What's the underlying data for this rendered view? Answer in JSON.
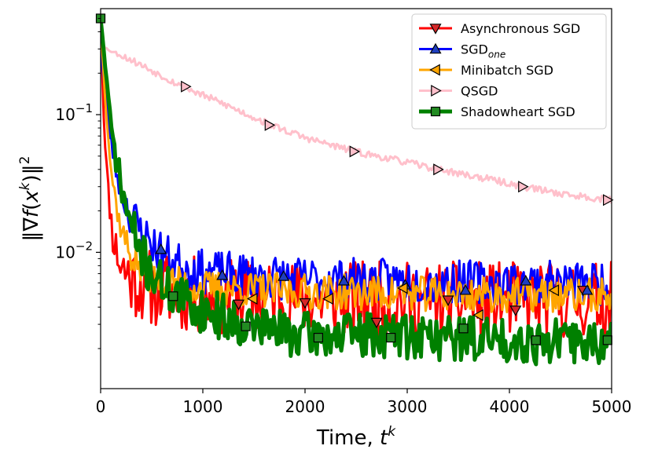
{
  "chart_data": {
    "type": "line",
    "title": "",
    "xlabel": "Time, t^k",
    "ylabel": "||∇f(x^k)||^2",
    "xlim": [
      0,
      5000
    ],
    "ylim_log10": [
      -2.99,
      -0.23
    ],
    "yscale": "log",
    "grid": false,
    "legend_position": "top-right",
    "x_ticks": [
      {
        "value": 0,
        "label": "0"
      },
      {
        "value": 1000,
        "label": "1000"
      },
      {
        "value": 2000,
        "label": "2000"
      },
      {
        "value": 3000,
        "label": "3000"
      },
      {
        "value": 4000,
        "label": "4000"
      },
      {
        "value": 5000,
        "label": "5000"
      }
    ],
    "y_ticks": [
      {
        "value": 0.1,
        "base": "10",
        "exponent": "−1"
      },
      {
        "value": 0.01,
        "base": "10",
        "exponent": "−2"
      }
    ],
    "series": [
      {
        "name": "Asynchronous SGD",
        "color": "#ff0000",
        "marker": "triangle-down",
        "marker_color": "#d62728",
        "stroke_width": 3,
        "noise": 0.28,
        "seed": 11,
        "curve": [
          [
            0,
            0.5
          ],
          [
            30,
            0.1
          ],
          [
            70,
            0.03
          ],
          [
            120,
            0.013
          ],
          [
            200,
            0.008
          ],
          [
            300,
            0.0065
          ],
          [
            500,
            0.0055
          ],
          [
            1000,
            0.0048
          ],
          [
            2000,
            0.0046
          ],
          [
            3000,
            0.0045
          ],
          [
            4000,
            0.0045
          ],
          [
            5000,
            0.0045
          ]
        ],
        "markers": [
          [
            1350,
            0.0042
          ],
          [
            2000,
            0.0043
          ],
          [
            2700,
            0.0031
          ],
          [
            3400,
            0.0045
          ],
          [
            4060,
            0.0038
          ],
          [
            4720,
            0.0053
          ]
        ]
      },
      {
        "name": "SGD_one",
        "color": "#0000ff",
        "marker": "triangle-up",
        "marker_color": "#1f3fbf",
        "stroke_width": 3,
        "noise": 0.16,
        "seed": 23,
        "curve": [
          [
            0,
            0.3
          ],
          [
            30,
            0.18
          ],
          [
            80,
            0.08
          ],
          [
            150,
            0.04
          ],
          [
            250,
            0.022
          ],
          [
            400,
            0.014
          ],
          [
            600,
            0.0098
          ],
          [
            800,
            0.008
          ],
          [
            1000,
            0.0072
          ],
          [
            1500,
            0.0068
          ],
          [
            2000,
            0.0064
          ],
          [
            3000,
            0.0062
          ],
          [
            4000,
            0.006
          ],
          [
            5000,
            0.006
          ]
        ],
        "markers": [
          [
            590,
            0.0105
          ],
          [
            1190,
            0.0068
          ],
          [
            1790,
            0.0067
          ],
          [
            2380,
            0.0062
          ],
          [
            2980,
            0.0058
          ],
          [
            3570,
            0.0053
          ],
          [
            4160,
            0.0062
          ],
          [
            4760,
            0.0053
          ]
        ]
      },
      {
        "name": "Minibatch SGD",
        "color": "#ffa500",
        "marker": "triangle-left",
        "marker_color": "#ffa500",
        "stroke_width": 3,
        "noise": 0.13,
        "seed": 37,
        "curve": [
          [
            0,
            0.45
          ],
          [
            40,
            0.15
          ],
          [
            100,
            0.04
          ],
          [
            180,
            0.017
          ],
          [
            280,
            0.01
          ],
          [
            400,
            0.0075
          ],
          [
            600,
            0.0062
          ],
          [
            1000,
            0.0055
          ],
          [
            2000,
            0.0052
          ],
          [
            3000,
            0.005
          ],
          [
            4000,
            0.0049
          ],
          [
            5000,
            0.0048
          ]
        ],
        "markers": [
          [
            1490,
            0.0046
          ],
          [
            2230,
            0.0046
          ],
          [
            2960,
            0.0055
          ],
          [
            3700,
            0.0035
          ],
          [
            4440,
            0.0053
          ]
        ]
      },
      {
        "name": "QSGD",
        "color": "#ffc0cb",
        "marker": "triangle-right",
        "marker_color": "#ffc0cb",
        "stroke_width": 3,
        "noise": 0.025,
        "seed": 53,
        "curve": [
          [
            0,
            0.32
          ],
          [
            100,
            0.29
          ],
          [
            300,
            0.25
          ],
          [
            800,
            0.16
          ],
          [
            1200,
            0.12
          ],
          [
            1650,
            0.085
          ],
          [
            2000,
            0.068
          ],
          [
            2480,
            0.054
          ],
          [
            3000,
            0.045
          ],
          [
            3300,
            0.04
          ],
          [
            3800,
            0.034
          ],
          [
            4130,
            0.03
          ],
          [
            4600,
            0.026
          ],
          [
            5000,
            0.024
          ]
        ],
        "markers": [
          [
            830,
            0.16
          ],
          [
            1650,
            0.084
          ],
          [
            2480,
            0.054
          ],
          [
            3300,
            0.04
          ],
          [
            4130,
            0.03
          ],
          [
            4960,
            0.024
          ]
        ]
      },
      {
        "name": "Shadowheart SGD",
        "color": "#008000",
        "marker": "square",
        "marker_color": "#228b22",
        "stroke_width": 5,
        "noise": 0.17,
        "seed": 71,
        "curve": [
          [
            0,
            0.5
          ],
          [
            40,
            0.25
          ],
          [
            100,
            0.08
          ],
          [
            200,
            0.03
          ],
          [
            300,
            0.015
          ],
          [
            450,
            0.008
          ],
          [
            600,
            0.0058
          ],
          [
            800,
            0.0045
          ],
          [
            1000,
            0.0038
          ],
          [
            1300,
            0.0032
          ],
          [
            1600,
            0.0028
          ],
          [
            2000,
            0.0025
          ],
          [
            3000,
            0.0025
          ],
          [
            4000,
            0.0023
          ],
          [
            5000,
            0.0022
          ]
        ],
        "markers": [
          [
            0,
            0.5
          ],
          [
            710,
            0.0048
          ],
          [
            1420,
            0.0029
          ],
          [
            2130,
            0.0024
          ],
          [
            2840,
            0.0024
          ],
          [
            3550,
            0.0028
          ],
          [
            4260,
            0.0023
          ],
          [
            4960,
            0.0023
          ]
        ]
      }
    ]
  },
  "legend": {
    "entries": [
      {
        "label": "Asynchronous SGD",
        "sub": ""
      },
      {
        "label": "SGD",
        "sub": "one"
      },
      {
        "label": "Minibatch SGD",
        "sub": ""
      },
      {
        "label": "QSGD",
        "sub": ""
      },
      {
        "label": "Shadowheart SGD",
        "sub": ""
      }
    ]
  },
  "labels": {
    "x_axis_main": "Time, ",
    "x_axis_var": "t",
    "x_axis_sup": "k",
    "y_axis_open": "‖∇",
    "y_axis_f": "f",
    "y_axis_paren_open": "(",
    "y_axis_x": "x",
    "y_axis_sup_k": "k",
    "y_axis_close": ")‖",
    "y_axis_sup_2": "2"
  }
}
